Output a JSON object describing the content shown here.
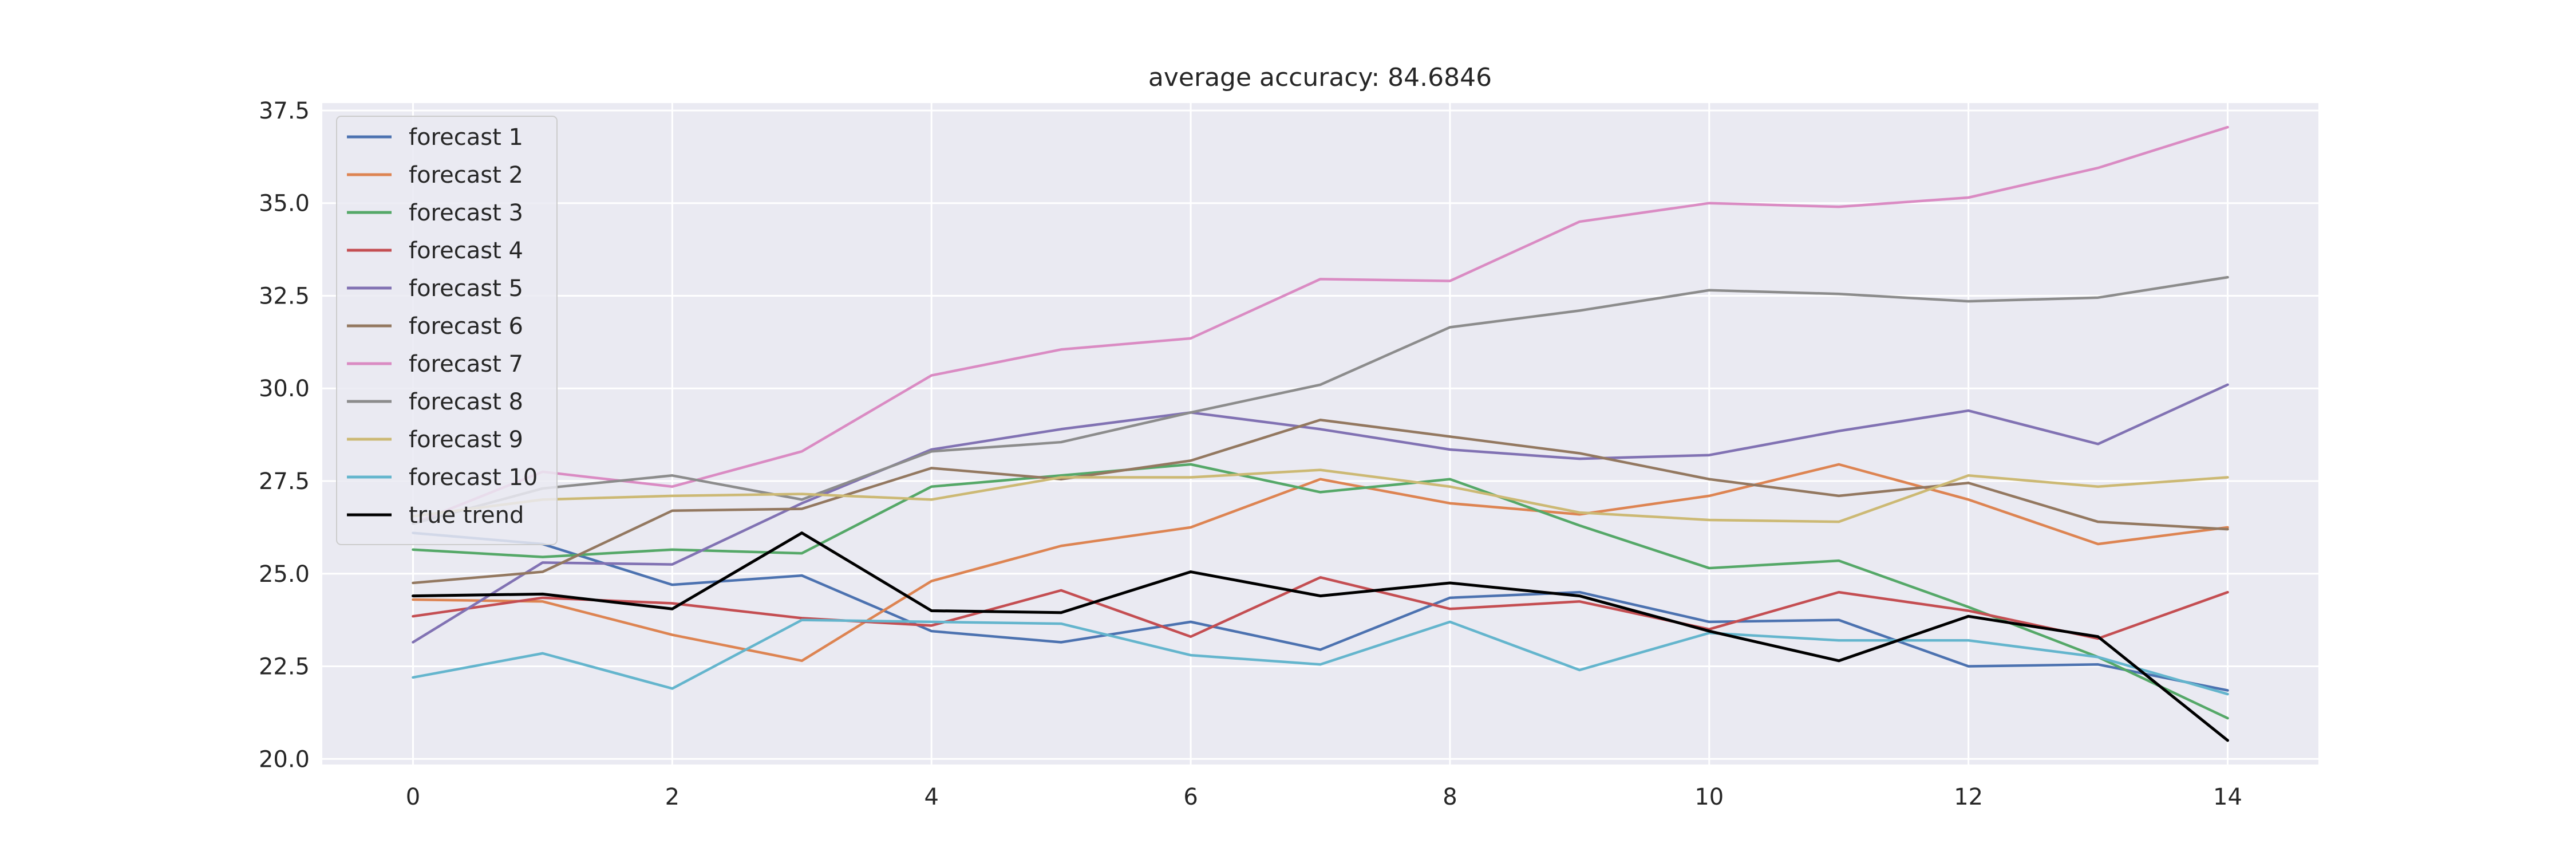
{
  "chart_data": {
    "type": "line",
    "title": "average accuracy: 84.6846",
    "xlabel": "",
    "ylabel": "",
    "x": [
      0,
      1,
      2,
      3,
      4,
      5,
      6,
      7,
      8,
      9,
      10,
      11,
      12,
      13,
      14
    ],
    "xlim": [
      -0.7,
      14.7
    ],
    "ylim": [
      19.85,
      37.7
    ],
    "xticks": [
      0,
      2,
      4,
      6,
      8,
      10,
      12,
      14
    ],
    "xtick_labels": [
      "0",
      "2",
      "4",
      "6",
      "8",
      "10",
      "12",
      "14"
    ],
    "yticks": [
      20.0,
      22.5,
      25.0,
      27.5,
      30.0,
      32.5,
      35.0,
      37.5
    ],
    "ytick_labels": [
      "20.0",
      "22.5",
      "25.0",
      "27.5",
      "30.0",
      "32.5",
      "35.0",
      "37.5"
    ],
    "grid": true,
    "background": "#eaeaf2",
    "grid_color": "#ffffff",
    "legend_position": "upper-left",
    "series": [
      {
        "name": "forecast 1",
        "color": "#4c72b0",
        "values": [
          26.1,
          25.8,
          24.7,
          24.95,
          23.45,
          23.15,
          23.7,
          22.95,
          24.35,
          24.5,
          23.7,
          23.75,
          22.5,
          22.55,
          21.85
        ]
      },
      {
        "name": "forecast 2",
        "color": "#dd8452",
        "values": [
          24.3,
          24.25,
          23.35,
          22.65,
          24.8,
          25.75,
          26.25,
          27.55,
          26.9,
          26.6,
          27.1,
          27.95,
          27.0,
          25.8,
          26.25
        ]
      },
      {
        "name": "forecast 3",
        "color": "#55a868",
        "values": [
          25.65,
          25.45,
          25.65,
          25.55,
          27.35,
          27.65,
          27.95,
          27.2,
          27.55,
          26.3,
          25.15,
          25.35,
          24.1,
          22.75,
          21.1
        ]
      },
      {
        "name": "forecast 4",
        "color": "#c44e52",
        "values": [
          23.85,
          24.35,
          24.2,
          23.8,
          23.6,
          24.55,
          23.3,
          24.9,
          24.05,
          24.25,
          23.5,
          24.5,
          24.0,
          23.25,
          24.5
        ]
      },
      {
        "name": "forecast 5",
        "color": "#8172b3",
        "values": [
          23.15,
          25.3,
          25.25,
          26.9,
          28.35,
          28.9,
          29.35,
          28.9,
          28.35,
          28.1,
          28.2,
          28.85,
          29.4,
          28.5,
          30.1
        ]
      },
      {
        "name": "forecast 6",
        "color": "#937860",
        "values": [
          24.75,
          25.05,
          26.7,
          26.75,
          27.85,
          27.55,
          28.05,
          29.15,
          28.7,
          28.25,
          27.55,
          27.1,
          27.45,
          26.4,
          26.2
        ]
      },
      {
        "name": "forecast 7",
        "color": "#da8bc3",
        "values": [
          26.35,
          27.75,
          27.35,
          28.3,
          30.35,
          31.05,
          31.35,
          32.95,
          32.9,
          34.5,
          35.0,
          34.9,
          35.15,
          35.95,
          37.05
        ]
      },
      {
        "name": "forecast 8",
        "color": "#8c8c8c",
        "values": [
          26.35,
          27.3,
          27.65,
          27.0,
          28.3,
          28.55,
          29.35,
          30.1,
          31.65,
          32.1,
          32.65,
          32.55,
          32.35,
          32.45,
          33.0
        ]
      },
      {
        "name": "forecast 9",
        "color": "#ccb974",
        "values": [
          26.55,
          27.0,
          27.1,
          27.15,
          27.0,
          27.6,
          27.6,
          27.8,
          27.35,
          26.65,
          26.45,
          26.4,
          27.65,
          27.35,
          27.6
        ]
      },
      {
        "name": "forecast 10",
        "color": "#64b5cd",
        "values": [
          22.2,
          22.85,
          21.9,
          23.75,
          23.7,
          23.65,
          22.8,
          22.55,
          23.7,
          22.4,
          23.4,
          23.2,
          23.2,
          22.75,
          21.75
        ]
      },
      {
        "name": "true trend",
        "color": "#000000",
        "values": [
          24.4,
          24.45,
          24.05,
          26.1,
          24.0,
          23.95,
          25.05,
          24.4,
          24.75,
          24.4,
          23.45,
          22.65,
          23.85,
          23.3,
          20.5
        ]
      }
    ]
  }
}
